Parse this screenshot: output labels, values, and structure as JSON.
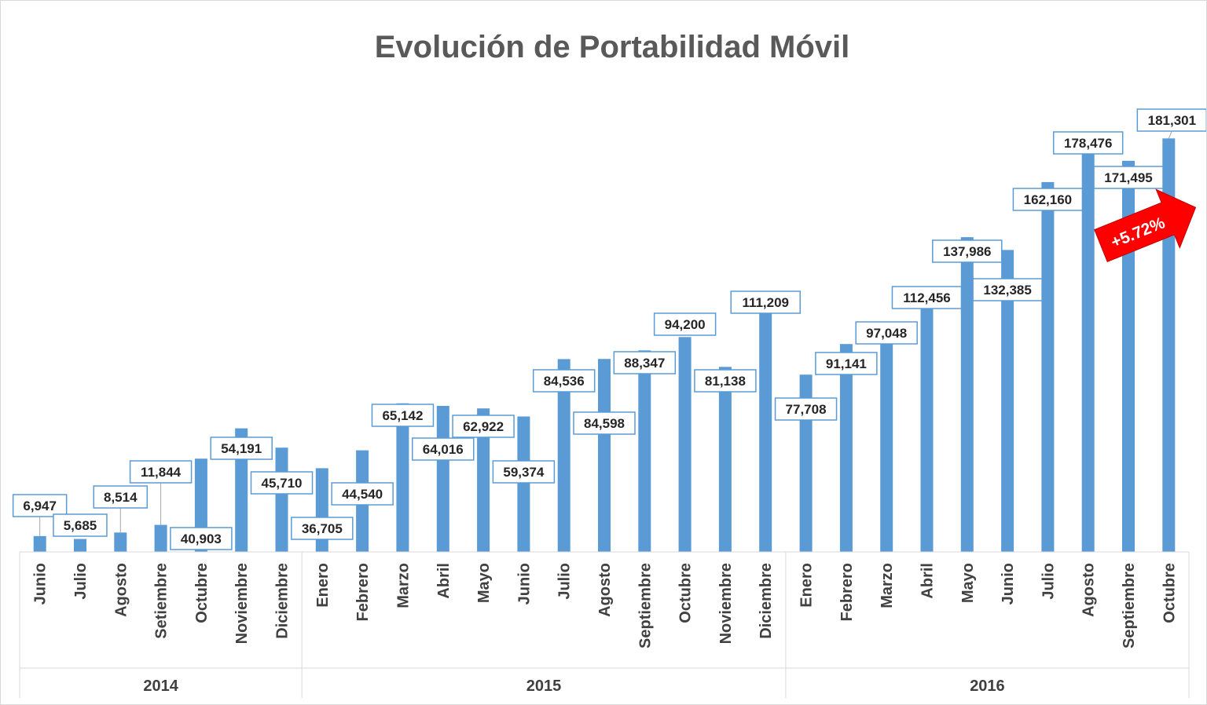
{
  "chart_data": {
    "type": "bar",
    "title": "Evolución de Portabilidad Móvil",
    "xlabel": "",
    "ylabel": "",
    "ylim": [
      0,
      190000
    ],
    "grid": false,
    "legend": "none",
    "bar_color": "#5b9bd5",
    "label_border_color": "#5b9bd5",
    "groups": [
      {
        "name": "2014",
        "count": 7
      },
      {
        "name": "2015",
        "count": 12
      },
      {
        "name": "2016",
        "count": 10
      }
    ],
    "categories": [
      "Junio",
      "Julio",
      "Agosto",
      "Setiembre",
      "Octubre",
      "Noviembre",
      "Diciembre",
      "Enero",
      "Febrero",
      "Marzo",
      "Abril",
      "Mayo",
      "Junio",
      "Julio",
      "Agosto",
      "Septiembre",
      "Octubre",
      "Noviembre",
      "Diciembre",
      "Enero",
      "Febrero",
      "Marzo",
      "Abril",
      "Mayo",
      "Junio",
      "Julio",
      "Agosto",
      "Septiembre",
      "Octubre"
    ],
    "values": [
      6947,
      5685,
      8514,
      11844,
      40903,
      54191,
      45710,
      36705,
      44540,
      65142,
      64016,
      62922,
      59374,
      84536,
      84598,
      88347,
      94200,
      81138,
      111209,
      77708,
      91141,
      97048,
      112456,
      137986,
      132385,
      162160,
      178476,
      171495,
      181301
    ],
    "data_labels": [
      "6,947",
      "5,685",
      "8,514",
      "11,844",
      "40,903",
      "54,191",
      "45,710",
      "36,705",
      "44,540",
      "65,142",
      "64,016",
      "62,922",
      "59,374",
      "84,536",
      "84,598",
      "88,347",
      "94,200",
      "81,138",
      "111,209",
      "77,708",
      "91,141",
      "97,048",
      "112,456",
      "137,986",
      "132,385",
      "162,160",
      "178,476",
      "171,495",
      "181,301"
    ],
    "annotation": {
      "text": "+5.72%",
      "color": "#ff0000"
    }
  }
}
